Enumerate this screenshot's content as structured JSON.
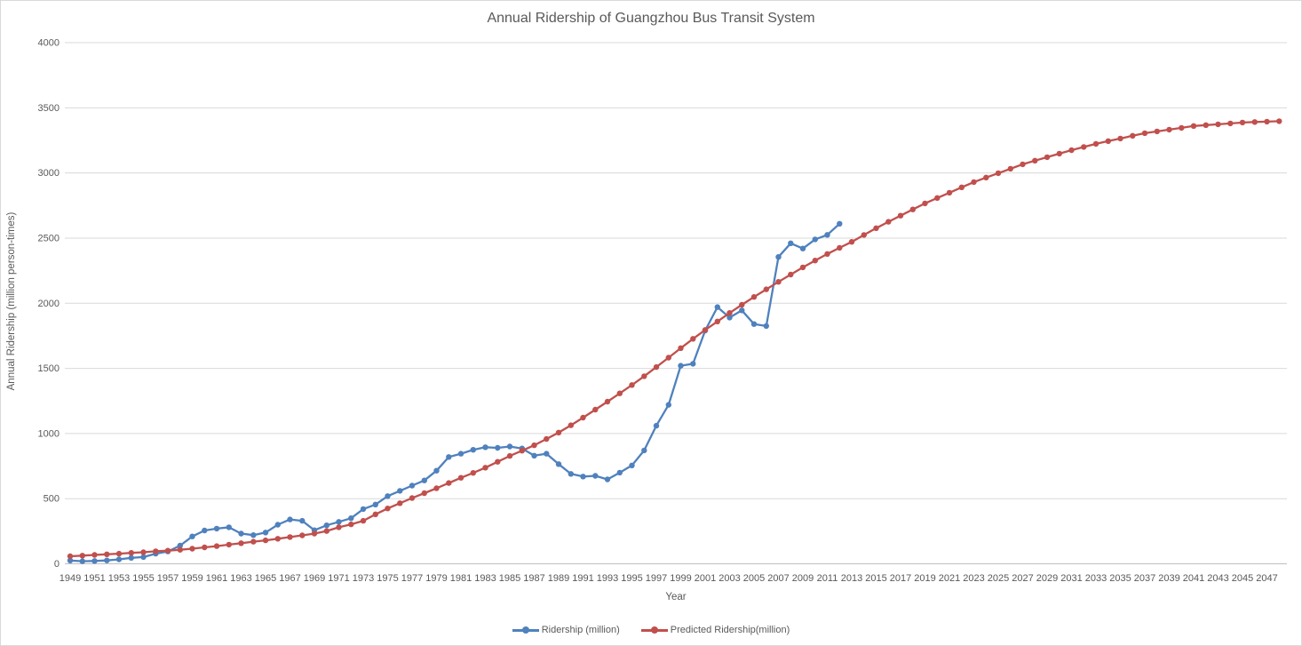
{
  "chart": {
    "title": "Annual Ridership of Guangzhou Bus Transit System",
    "x_axis_title": "Year",
    "y_axis_title": "Annual Ridership (million person-times)"
  },
  "chart_data": {
    "type": "line",
    "title": "Annual Ridership of Guangzhou Bus Transit System",
    "xlabel": "Year",
    "ylabel": "Annual Ridership (million person-times)",
    "ylim": [
      0,
      4000
    ],
    "y_ticks": [
      0,
      500,
      1000,
      1500,
      2000,
      2500,
      3000,
      3500,
      4000
    ],
    "x_tick_labels": [
      1949,
      1951,
      1953,
      1955,
      1957,
      1959,
      1961,
      1963,
      1965,
      1967,
      1969,
      1971,
      1973,
      1975,
      1977,
      1979,
      1981,
      1983,
      1985,
      1987,
      1989,
      1991,
      1993,
      1995,
      1997,
      1999,
      2001,
      2003,
      2005,
      2007,
      2009,
      2011,
      2013,
      2015,
      2017,
      2019,
      2021,
      2023,
      2025,
      2027,
      2029,
      2031,
      2033,
      2035,
      2037,
      2039,
      2041,
      2043,
      2045,
      2047
    ],
    "x_start_year": 1949,
    "grid": true,
    "legend_position": "bottom",
    "colors": {
      "ridership": "#4F81BD",
      "predicted": "#C0504D",
      "gridline": "#D9D9D9",
      "axis_line": "#BFBFBF",
      "text": "#595959"
    },
    "series": [
      {
        "name": "Ridership (million)",
        "color": "#4F81BD",
        "start_year": 1949,
        "values": [
          25,
          20,
          22,
          26,
          34,
          46,
          52,
          78,
          95,
          140,
          210,
          256,
          270,
          280,
          232,
          220,
          240,
          300,
          340,
          330,
          258,
          295,
          322,
          350,
          420,
          455,
          520,
          560,
          600,
          640,
          715,
          820,
          845,
          875,
          895,
          890,
          900,
          885,
          830,
          845,
          765,
          690,
          670,
          675,
          648,
          700,
          755,
          870,
          1060,
          1220,
          1520,
          1535,
          1790,
          1970,
          1890,
          1945,
          1840,
          1825,
          2355,
          2460,
          2420,
          2490,
          2525,
          2610
        ]
      },
      {
        "name": "Predicted Ridership(million)",
        "color": "#C0504D",
        "start_year": 1949,
        "values": [
          58,
          63,
          68,
          73,
          78,
          84,
          89,
          96,
          101,
          108,
          116,
          126,
          136,
          147,
          158,
          170,
          180,
          192,
          205,
          218,
          232,
          252,
          280,
          303,
          330,
          380,
          425,
          465,
          505,
          542,
          580,
          620,
          660,
          698,
          738,
          783,
          828,
          868,
          910,
          958,
          1007,
          1063,
          1122,
          1183,
          1245,
          1308,
          1372,
          1440,
          1510,
          1582,
          1655,
          1727,
          1795,
          1860,
          1925,
          1988,
          2048,
          2107,
          2164,
          2220,
          2275,
          2328,
          2378,
          2425,
          2471,
          2524,
          2576,
          2625,
          2672,
          2720,
          2766,
          2808,
          2848,
          2890,
          2930,
          2965,
          2998,
          3032,
          3066,
          3094,
          3121,
          3148,
          3175,
          3199,
          3223,
          3244,
          3264,
          3285,
          3305,
          3319,
          3332,
          3346,
          3360,
          3367,
          3373,
          3380,
          3387,
          3391,
          3394,
          3397
        ]
      }
    ]
  }
}
